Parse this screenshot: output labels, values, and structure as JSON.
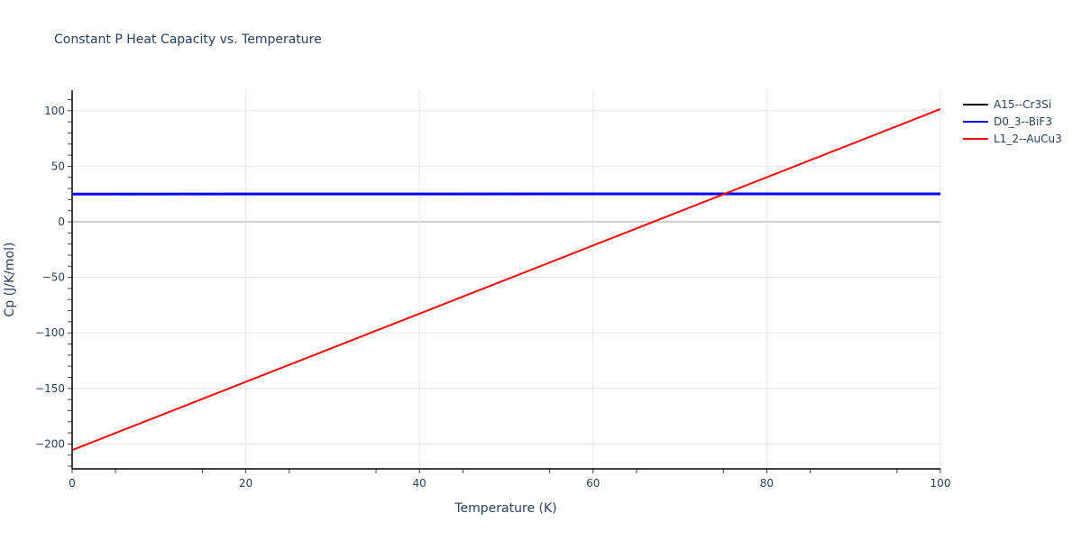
{
  "title": "Constant P Heat Capacity vs. Temperature",
  "xaxis": {
    "label": "Temperature (K)",
    "ticks": [
      "0",
      "20",
      "40",
      "60",
      "80",
      "100"
    ]
  },
  "yaxis": {
    "label": "Cp (J/K/mol)",
    "ticks": [
      "100",
      "50",
      "0",
      "−50",
      "−100",
      "−150",
      "−200"
    ]
  },
  "legend": [
    {
      "name": "A15--Cr3Si",
      "color": "#000000"
    },
    {
      "name": "D0_3--BiF3",
      "color": "#0000ff"
    },
    {
      "name": "L1_2--AuCu3",
      "color": "#ff0000"
    }
  ],
  "chart_data": {
    "type": "line",
    "title": "Constant P Heat Capacity vs. Temperature",
    "xlabel": "Temperature (K)",
    "ylabel": "Cp (J/K/mol)",
    "xlim": [
      0,
      100
    ],
    "ylim": [
      -222,
      118
    ],
    "grid": true,
    "legend_position": "right",
    "x": [
      0,
      100
    ],
    "series": [
      {
        "name": "A15--Cr3Si",
        "color": "#000000",
        "values": [
          25,
          25
        ]
      },
      {
        "name": "D0_3--BiF3",
        "color": "#0000ff",
        "values": [
          25,
          25.2
        ]
      },
      {
        "name": "L1_2--AuCu3",
        "color": "#ff0000",
        "values": [
          -205.5,
          101.5
        ]
      }
    ]
  }
}
